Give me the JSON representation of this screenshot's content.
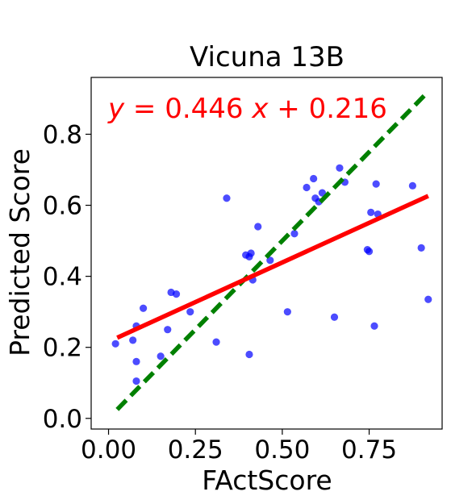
{
  "chart_data": {
    "type": "scatter",
    "title": "Vicuna 13B",
    "xlabel": "FActScore",
    "ylabel": "Predicted Score",
    "xlim": [
      -0.05,
      0.96
    ],
    "ylim": [
      -0.03,
      0.96
    ],
    "x_ticks": [
      {
        "value": 0.0,
        "label": "0.00"
      },
      {
        "value": 0.25,
        "label": "0.25"
      },
      {
        "value": 0.5,
        "label": "0.50"
      },
      {
        "value": 0.75,
        "label": "0.75"
      }
    ],
    "y_ticks": [
      {
        "value": 0.0,
        "label": "0.0"
      },
      {
        "value": 0.2,
        "label": "0.2"
      },
      {
        "value": 0.4,
        "label": "0.4"
      },
      {
        "value": 0.6,
        "label": "0.6"
      },
      {
        "value": 0.8,
        "label": "0.8"
      }
    ],
    "grid": false,
    "points": [
      {
        "x": 0.02,
        "y": 0.21
      },
      {
        "x": 0.07,
        "y": 0.22
      },
      {
        "x": 0.08,
        "y": 0.26
      },
      {
        "x": 0.08,
        "y": 0.16
      },
      {
        "x": 0.08,
        "y": 0.105
      },
      {
        "x": 0.1,
        "y": 0.31
      },
      {
        "x": 0.15,
        "y": 0.175
      },
      {
        "x": 0.17,
        "y": 0.25
      },
      {
        "x": 0.18,
        "y": 0.355
      },
      {
        "x": 0.195,
        "y": 0.35
      },
      {
        "x": 0.235,
        "y": 0.3
      },
      {
        "x": 0.31,
        "y": 0.215
      },
      {
        "x": 0.34,
        "y": 0.62
      },
      {
        "x": 0.395,
        "y": 0.46
      },
      {
        "x": 0.405,
        "y": 0.455
      },
      {
        "x": 0.41,
        "y": 0.465
      },
      {
        "x": 0.405,
        "y": 0.18
      },
      {
        "x": 0.415,
        "y": 0.39
      },
      {
        "x": 0.43,
        "y": 0.54
      },
      {
        "x": 0.465,
        "y": 0.445
      },
      {
        "x": 0.515,
        "y": 0.3
      },
      {
        "x": 0.535,
        "y": 0.52
      },
      {
        "x": 0.57,
        "y": 0.65
      },
      {
        "x": 0.59,
        "y": 0.675
      },
      {
        "x": 0.595,
        "y": 0.62
      },
      {
        "x": 0.605,
        "y": 0.61
      },
      {
        "x": 0.615,
        "y": 0.635
      },
      {
        "x": 0.65,
        "y": 0.285
      },
      {
        "x": 0.665,
        "y": 0.705
      },
      {
        "x": 0.68,
        "y": 0.665
      },
      {
        "x": 0.745,
        "y": 0.475
      },
      {
        "x": 0.75,
        "y": 0.47
      },
      {
        "x": 0.755,
        "y": 0.58
      },
      {
        "x": 0.765,
        "y": 0.26
      },
      {
        "x": 0.77,
        "y": 0.66
      },
      {
        "x": 0.775,
        "y": 0.575
      },
      {
        "x": 0.875,
        "y": 0.655
      },
      {
        "x": 0.9,
        "y": 0.48
      },
      {
        "x": 0.92,
        "y": 0.335
      }
    ],
    "regression_line": {
      "slope": 0.446,
      "intercept": 0.216,
      "x_range": [
        0.025,
        0.92
      ]
    },
    "identity_line": {
      "x_range": [
        0.025,
        0.91
      ]
    },
    "equation_parts": {
      "y": "y",
      "eq": " = 0.446 ",
      "x": "x",
      "rest": " + 0.216"
    },
    "colors": {
      "points": "#0000ff",
      "regression_line": "#ff0000",
      "identity_line": "#008000",
      "equation": "#ff0000"
    }
  }
}
